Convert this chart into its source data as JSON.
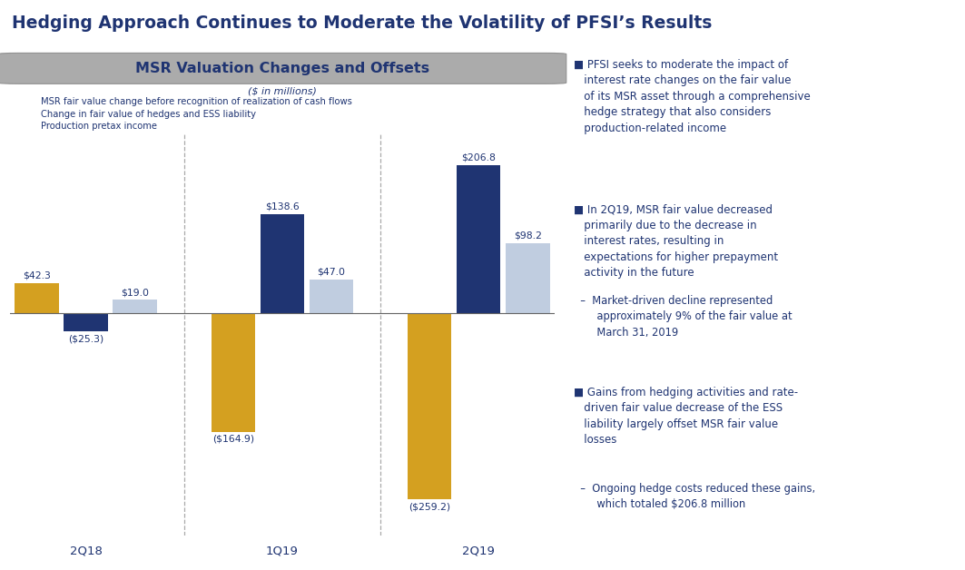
{
  "title": "Hedging Approach Continues to Moderate the Volatility of PFSI’s Results",
  "chart_title": "MSR Valuation Changes and Offsets",
  "subtitle": "($ in millions)",
  "categories": [
    "2Q18",
    "1Q19",
    "2Q19"
  ],
  "series": {
    "msr": [
      42.3,
      -164.9,
      -259.2
    ],
    "hedge": [
      -25.3,
      138.6,
      206.8
    ],
    "production": [
      19.0,
      47.0,
      98.2
    ]
  },
  "colors": {
    "msr": "#D4A020",
    "hedge": "#1F3472",
    "production": "#C0CDE0"
  },
  "legend_labels": [
    "MSR fair value change before recognition of realization of cash flows",
    "Change in fair value of hedges and ESS liability",
    "Production pretax income"
  ],
  "bar_labels": {
    "msr": [
      "$42.3",
      "($164.9)",
      "($259.2)"
    ],
    "hedge": [
      "($25.3)",
      "$138.6",
      "$206.8"
    ],
    "production": [
      "$19.0",
      "$47.0",
      "$98.2"
    ]
  },
  "title_color": "#1F3472",
  "text_color": "#1F3472",
  "background_color": "#FFFFFF",
  "ylim": [
    -310,
    250
  ],
  "bar_width": 0.18,
  "group_centers": [
    0.28,
    1.0,
    1.72
  ],
  "bullet_points": [
    {
      "type": "main",
      "text": "PFSI seeks to moderate the impact of interest rate changes on the fair value of its MSR asset through a comprehensive hedge strategy that also considers production-related income"
    },
    {
      "type": "main",
      "text": "In 2Q19, MSR fair value decreased primarily due to the decrease in interest rates, resulting in expectations for higher prepayment activity in the future"
    },
    {
      "type": "sub",
      "text": "Market-driven decline represented approximately 9% of the fair value at March 31, 2019"
    },
    {
      "type": "main",
      "text": "Gains from hedging activities and rate-driven fair value decrease of the ESS liability largely offset MSR fair value losses"
    },
    {
      "type": "sub",
      "text": "Ongoing hedge costs reduced these gains, which totaled $206.8 million"
    }
  ]
}
